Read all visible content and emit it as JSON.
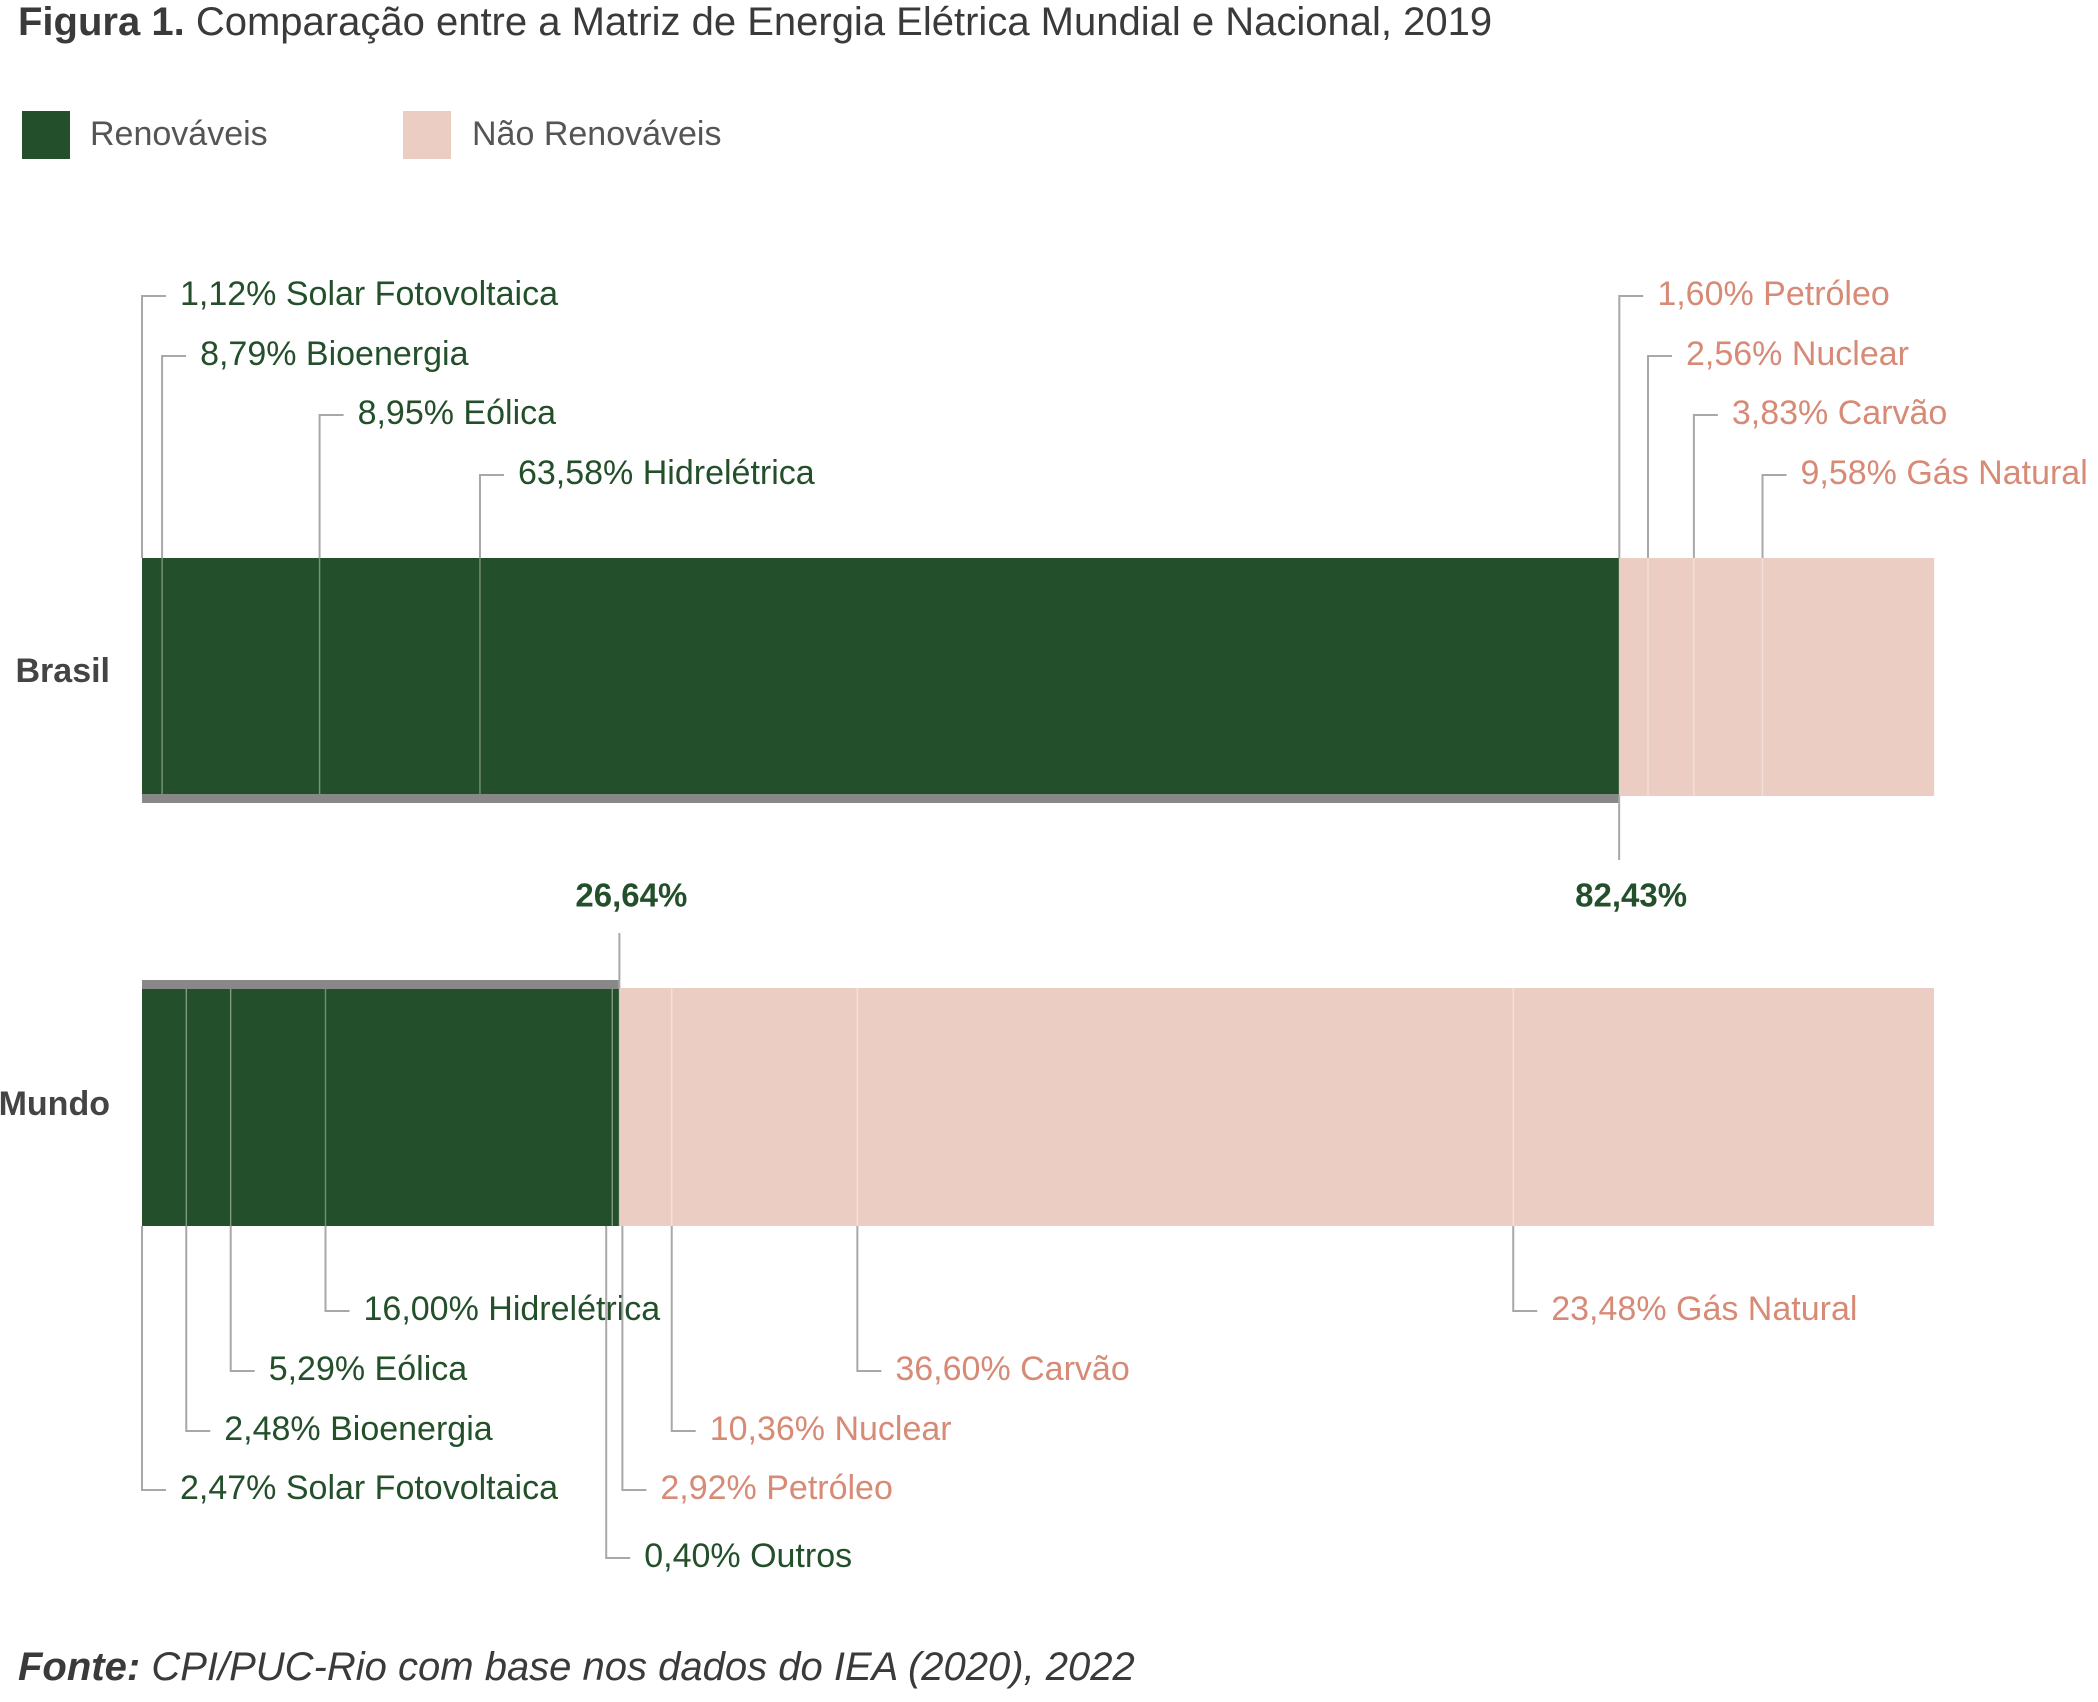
{
  "title": {
    "prefix": "Figura 1.",
    "text": "Comparação entre a Matriz de Energia Elétrica Mundial e Nacional, 2019"
  },
  "legend": [
    {
      "label": "Renováveis",
      "color": "#234f2a"
    },
    {
      "label": "Não Renováveis",
      "color": "#ebcdc3"
    }
  ],
  "colors": {
    "renewable": "#234f2a",
    "non_renewable": "#ebcdc3",
    "renewable_text": "#234f2a",
    "non_renewable_text": "#d78a76",
    "leader": "#a8a8a8",
    "total_bar": "#888888"
  },
  "chart_data": {
    "type": "bar",
    "orientation": "horizontal",
    "stacked": true,
    "xlim": [
      0,
      100
    ],
    "categories": [
      "Brasil",
      "Mundo"
    ],
    "series": [
      {
        "category": "Brasil",
        "total_renewable_label": "82,43%",
        "total_renewable": 82.43,
        "segments": [
          {
            "label": "1,12% Solar Fotovoltaica",
            "value": 1.12,
            "group": "renewable"
          },
          {
            "label": "8,79% Bioenergia",
            "value": 8.79,
            "group": "renewable"
          },
          {
            "label": "8,95% Eólica",
            "value": 8.95,
            "group": "renewable"
          },
          {
            "label": "63,58% Hidrelétrica",
            "value": 63.58,
            "group": "renewable"
          },
          {
            "label": "1,60% Petróleo",
            "value": 1.6,
            "group": "non_renewable"
          },
          {
            "label": "2,56% Nuclear",
            "value": 2.56,
            "group": "non_renewable"
          },
          {
            "label": "3,83% Carvão",
            "value": 3.83,
            "group": "non_renewable"
          },
          {
            "label": "9,58% Gás Natural",
            "value": 9.58,
            "group": "non_renewable"
          }
        ]
      },
      {
        "category": "Mundo",
        "total_renewable_label": "26,64%",
        "total_renewable": 26.64,
        "segments": [
          {
            "label": "2,47% Solar Fotovoltaica",
            "value": 2.47,
            "group": "renewable"
          },
          {
            "label": "2,48% Bioenergia",
            "value": 2.48,
            "group": "renewable"
          },
          {
            "label": "5,29% Eólica",
            "value": 5.29,
            "group": "renewable"
          },
          {
            "label": "16,00% Hidrelétrica",
            "value": 16.0,
            "group": "renewable"
          },
          {
            "label": "0,40% Outros",
            "value": 0.4,
            "group": "renewable"
          },
          {
            "label": "2,92% Petróleo",
            "value": 2.92,
            "group": "non_renewable"
          },
          {
            "label": "10,36% Nuclear",
            "value": 10.36,
            "group": "non_renewable"
          },
          {
            "label": "36,60% Carvão",
            "value": 36.6,
            "group": "non_renewable"
          },
          {
            "label": "23,48% Gás Natural",
            "value": 23.48,
            "group": "non_renewable"
          }
        ]
      }
    ]
  },
  "source": {
    "prefix": "Fonte:",
    "text": "CPI/PUC-Rio com base nos dados do IEA (2020), 2022"
  }
}
